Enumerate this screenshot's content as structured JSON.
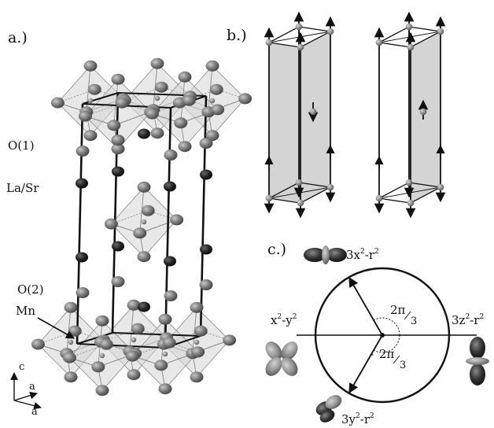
{
  "panel_a": {
    "label": "a.)",
    "o1_label": "O(1)",
    "lasr_label": "La/Sr",
    "o2_label": "O(2)",
    "mn_label": "Mn",
    "axes": {
      "c": "c",
      "a1": "a",
      "a2": "a"
    }
  },
  "panel_b": {
    "label": "b.)"
  },
  "panel_c": {
    "label": "c.)",
    "orb_top": {
      "base": "3x",
      "sup1": "2",
      "mid": "-r",
      "sup2": "2"
    },
    "orb_left": {
      "base": "x",
      "sup1": "2",
      "mid": "-y",
      "sup2": "2"
    },
    "orb_right": {
      "base": "3z",
      "sup1": "2",
      "mid": "-r",
      "sup2": "2"
    },
    "orb_bottom": {
      "base": "3y",
      "sup1": "2",
      "mid": "-r",
      "sup2": "2"
    },
    "angle_pos": {
      "num": "2π",
      "den": "3"
    },
    "angle_neg": {
      "minus": "-",
      "num": "2π",
      "den": "3"
    }
  },
  "colors": {
    "ink": "#111111",
    "oxygen": "#7c7c7c",
    "la_sr": "#2a2a2a",
    "octahedron": "#d6d6d6",
    "plane": "#cfcfcf",
    "orbital_dark": "#333333",
    "orbital_light": "#9a9a9a"
  }
}
